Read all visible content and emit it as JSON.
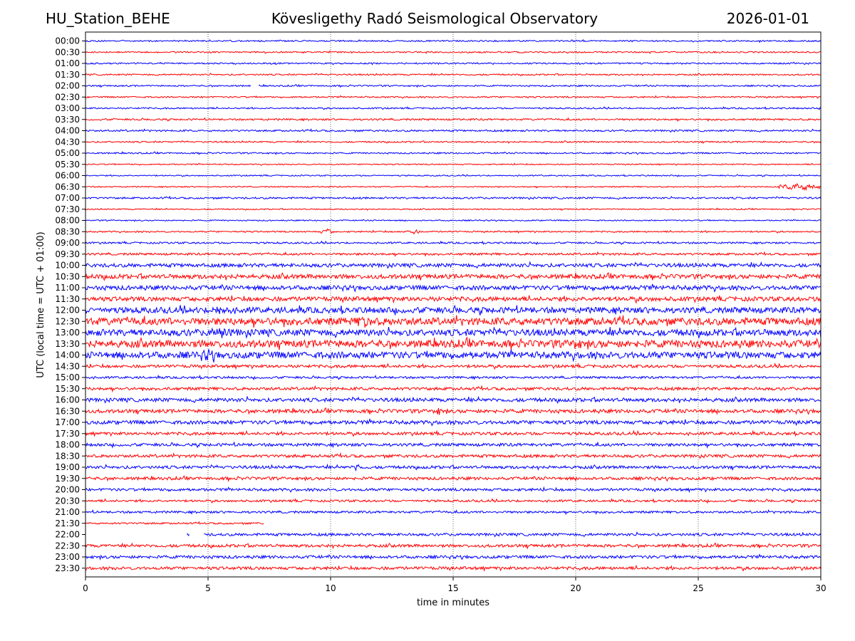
{
  "header": {
    "station": "HU_Station_BEHE",
    "title": "Kövesligethy Radó Seismological Observatory",
    "date": "2026-01-01"
  },
  "chart_data": {
    "type": "line",
    "title": "Kövesligethy Radó Seismological Observatory",
    "xlabel": "time in minutes",
    "ylabel": "UTC (local time = UTC + 01:00)",
    "xlim": [
      0,
      30
    ],
    "xticks": [
      0,
      5,
      10,
      15,
      20,
      25,
      30
    ],
    "xtick_labels": [
      "0",
      "5",
      "10",
      "15",
      "20",
      "25",
      "30"
    ],
    "grid": "vertical dotted at 5, 10, 15, 20, 25",
    "colors": {
      "even_hour": "#0000ff",
      "half_hour": "#ff0000"
    },
    "rows": [
      "00:00",
      "00:30",
      "01:00",
      "01:30",
      "02:00",
      "02:30",
      "03:00",
      "03:30",
      "04:00",
      "04:30",
      "05:00",
      "05:30",
      "06:00",
      "06:30",
      "07:00",
      "07:30",
      "08:00",
      "08:30",
      "09:00",
      "09:30",
      "10:00",
      "10:30",
      "11:00",
      "11:30",
      "12:00",
      "12:30",
      "13:00",
      "13:30",
      "14:00",
      "14:30",
      "15:00",
      "15:30",
      "16:00",
      "16:30",
      "17:00",
      "17:30",
      "18:00",
      "18:30",
      "19:00",
      "19:30",
      "20:00",
      "20:30",
      "21:00",
      "21:30",
      "22:00",
      "22:30",
      "23:00",
      "23:30"
    ],
    "noise_level": [
      1,
      1,
      1,
      1,
      1,
      1,
      1,
      1.2,
      1.2,
      1,
      1,
      0.8,
      0.8,
      0.8,
      1.2,
      0.8,
      0.8,
      1,
      1.2,
      1.5,
      2.5,
      3,
      3,
      3,
      4,
      5,
      4.5,
      5,
      4.5,
      2,
      1.5,
      2,
      2.5,
      2.5,
      2.5,
      2,
      2,
      2,
      2,
      2,
      1.8,
      1.5,
      1.5,
      1.2,
      1.8,
      2,
      2,
      2
    ],
    "events": [
      {
        "row": "06:30",
        "start": 28.3,
        "end": 30,
        "amp": 5
      },
      {
        "row": "08:30",
        "start": 9.6,
        "end": 10.1,
        "amp": 4
      },
      {
        "row": "08:30",
        "start": 13.1,
        "end": 13.6,
        "amp": 4
      },
      {
        "row": "12:00",
        "start": 5.0,
        "end": 6.0,
        "amp": 8
      },
      {
        "row": "12:30",
        "start": 11.0,
        "end": 11.8,
        "amp": 10
      },
      {
        "row": "13:00",
        "start": 5.0,
        "end": 6.0,
        "amp": 9
      },
      {
        "row": "13:30",
        "start": 19.5,
        "end": 20.5,
        "amp": 8
      },
      {
        "row": "14:00",
        "start": 4.5,
        "end": 5.5,
        "amp": 8
      },
      {
        "row": "16:30",
        "start": 14.2,
        "end": 14.6,
        "amp": 6
      },
      {
        "row": "19:00",
        "start": 11.0,
        "end": 11.2,
        "amp": 8
      }
    ],
    "gaps": [
      {
        "row": "02:00",
        "start": 6.75,
        "end": 7.05
      },
      {
        "row": "21:30",
        "start": 7.3,
        "end": 30
      },
      {
        "row": "22:00",
        "start": 0,
        "end": 4.1
      },
      {
        "row": "22:00",
        "start": 4.25,
        "end": 4.8
      }
    ]
  }
}
